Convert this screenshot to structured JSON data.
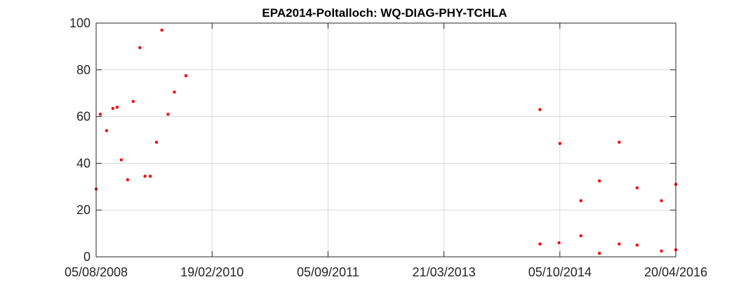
{
  "chart_data": {
    "type": "scatter",
    "title": "EPA2014-Poltalloch: WQ-DIAG-PHY-TCHLA",
    "xlabel": "",
    "ylabel": "",
    "xlim": [
      "2008-08-05",
      "2016-04-20"
    ],
    "ylim": [
      0,
      100
    ],
    "grid": true,
    "marker_color": "#ff0000",
    "x_ticks": [
      "05/08/2008",
      "19/02/2010",
      "05/09/2011",
      "21/03/2013",
      "05/10/2014",
      "20/04/2016"
    ],
    "y_ticks": [
      0,
      20,
      40,
      60,
      80,
      100
    ],
    "series": [
      {
        "points": [
          {
            "x": "2008-08-05",
            "y": 29
          },
          {
            "x": "2008-08-25",
            "y": 61
          },
          {
            "x": "2008-09-25",
            "y": 54
          },
          {
            "x": "2008-10-25",
            "y": 63.5
          },
          {
            "x": "2008-11-15",
            "y": 64
          },
          {
            "x": "2008-12-05",
            "y": 41.5
          },
          {
            "x": "2009-01-05",
            "y": 33
          },
          {
            "x": "2009-02-01",
            "y": 66.5
          },
          {
            "x": "2009-03-05",
            "y": 89.5
          },
          {
            "x": "2009-03-30",
            "y": 34.5
          },
          {
            "x": "2009-04-25",
            "y": 34.5
          },
          {
            "x": "2009-05-25",
            "y": 49
          },
          {
            "x": "2009-06-20",
            "y": 97
          },
          {
            "x": "2009-07-20",
            "y": 61
          },
          {
            "x": "2009-08-20",
            "y": 70.5
          },
          {
            "x": "2009-10-15",
            "y": 77.5
          },
          {
            "x": "2014-06-30",
            "y": 63
          },
          {
            "x": "2014-06-30",
            "y": 5.5
          },
          {
            "x": "2014-10-05",
            "y": 48.5
          },
          {
            "x": "2014-10-01",
            "y": 6
          },
          {
            "x": "2015-01-15",
            "y": 24
          },
          {
            "x": "2015-01-15",
            "y": 9
          },
          {
            "x": "2015-04-15",
            "y": 32.5
          },
          {
            "x": "2015-04-15",
            "y": 1.5
          },
          {
            "x": "2015-07-20",
            "y": 49
          },
          {
            "x": "2015-07-20",
            "y": 5.5
          },
          {
            "x": "2015-10-15",
            "y": 29.5
          },
          {
            "x": "2015-10-15",
            "y": 5
          },
          {
            "x": "2016-02-10",
            "y": 24
          },
          {
            "x": "2016-02-10",
            "y": 2.5
          },
          {
            "x": "2016-04-20",
            "y": 31
          },
          {
            "x": "2016-04-20",
            "y": 3
          }
        ]
      }
    ]
  }
}
